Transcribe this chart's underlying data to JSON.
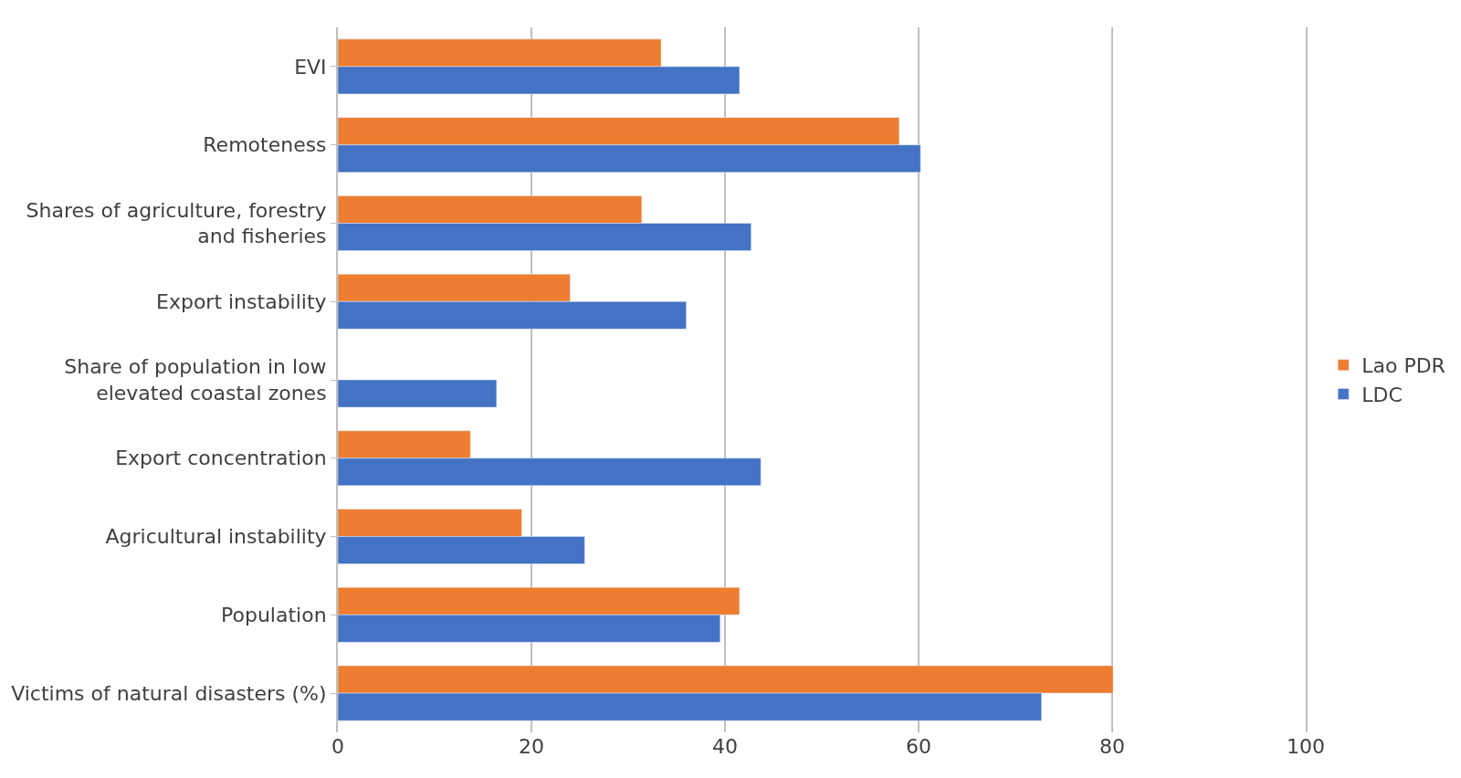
{
  "chart_data": {
    "type": "bar",
    "orientation": "horizontal",
    "categories": [
      "EVI",
      "Remoteness",
      "Shares of agriculture, forestry and fisheries",
      "Export instability",
      "Share of population in low elevated coastal zones",
      "Export concentration",
      "Agricultural instability",
      "Population",
      "Victims of natural disasters (%)"
    ],
    "series": [
      {
        "name": "Lao PDR",
        "color": "#ed7d31",
        "values": [
          33.4,
          58,
          31.4,
          24,
          null,
          13.7,
          19,
          41.5,
          80.1
        ]
      },
      {
        "name": "LDC",
        "color": "#4472c4",
        "values": [
          41.5,
          60.2,
          42.7,
          36,
          16.4,
          43.7,
          25.5,
          39.5,
          72.7
        ]
      }
    ],
    "xlim": [
      0,
      100
    ],
    "xticks": [
      0,
      20,
      40,
      60,
      80,
      100
    ],
    "grid": "x",
    "legend": "right"
  }
}
